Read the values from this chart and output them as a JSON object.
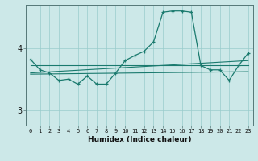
{
  "xlabel": "Humidex (Indice chaleur)",
  "bg_color": "#cce8e8",
  "grid_color": "#99cccc",
  "line_color": "#1a7a6e",
  "x_ticks": [
    0,
    1,
    2,
    3,
    4,
    5,
    6,
    7,
    8,
    9,
    10,
    11,
    12,
    13,
    14,
    15,
    16,
    17,
    18,
    19,
    20,
    21,
    22,
    23
  ],
  "ylim": [
    2.75,
    4.7
  ],
  "yticks": [
    3.0,
    4.0
  ],
  "series1": [
    3.82,
    3.65,
    3.6,
    3.48,
    3.5,
    3.42,
    3.55,
    3.42,
    3.42,
    3.6,
    3.8,
    3.88,
    3.95,
    4.1,
    4.58,
    4.6,
    4.6,
    4.58,
    3.72,
    3.65,
    3.65,
    3.48,
    3.72,
    3.92
  ],
  "series2_x": [
    0,
    23
  ],
  "series2_y": [
    3.72,
    3.72
  ],
  "series3_x": [
    0,
    23
  ],
  "series3_y": [
    3.6,
    3.8
  ],
  "series4_x": [
    0,
    23
  ],
  "series4_y": [
    3.58,
    3.62
  ]
}
